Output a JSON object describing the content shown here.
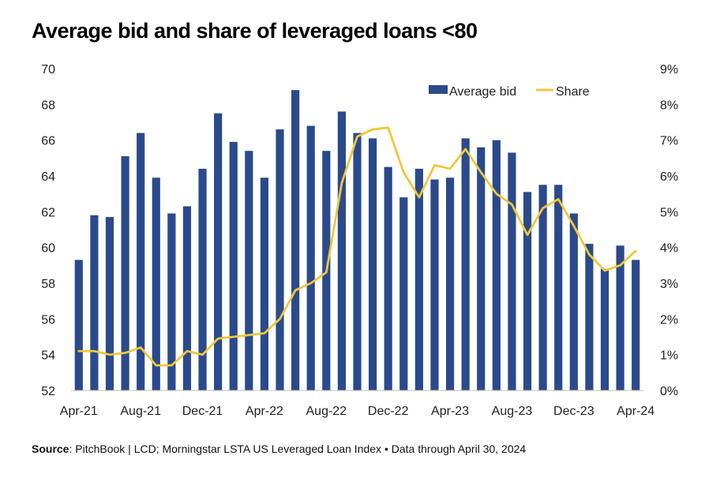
{
  "chart_data": {
    "type": "bar",
    "title": "Average bid and share of leveraged loans <80",
    "categories": [
      "Apr-21",
      "May-21",
      "Jun-21",
      "Jul-21",
      "Aug-21",
      "Sep-21",
      "Oct-21",
      "Nov-21",
      "Dec-21",
      "Jan-22",
      "Feb-22",
      "Mar-22",
      "Apr-22",
      "May-22",
      "Jun-22",
      "Jul-22",
      "Aug-22",
      "Sep-22",
      "Oct-22",
      "Nov-22",
      "Dec-22",
      "Jan-23",
      "Feb-23",
      "Mar-23",
      "Apr-23",
      "May-23",
      "Jun-23",
      "Jul-23",
      "Aug-23",
      "Sep-23",
      "Oct-23",
      "Nov-23",
      "Dec-23",
      "Jan-24",
      "Feb-24",
      "Mar-24",
      "Apr-24"
    ],
    "x_tick_labels": [
      "Apr-21",
      "Aug-21",
      "Dec-21",
      "Apr-22",
      "Aug-22",
      "Dec-22",
      "Apr-23",
      "Aug-23",
      "Dec-23",
      "Apr-24"
    ],
    "series": [
      {
        "name": "Average bid",
        "type": "bar",
        "axis": "left",
        "color": "#2b4a8b",
        "values": [
          59.3,
          61.8,
          61.7,
          65.1,
          66.4,
          63.9,
          61.9,
          62.3,
          64.4,
          67.5,
          65.9,
          65.4,
          63.9,
          66.6,
          68.8,
          66.8,
          65.4,
          67.6,
          66.4,
          66.1,
          64.5,
          62.8,
          64.4,
          63.8,
          63.9,
          66.1,
          65.6,
          66.0,
          65.3,
          63.1,
          63.5,
          63.5,
          61.9,
          60.2,
          58.8,
          60.1,
          59.3
        ]
      },
      {
        "name": "Share",
        "type": "line",
        "axis": "right",
        "color": "#f0c83a",
        "values": [
          1.1,
          1.1,
          1.0,
          1.05,
          1.2,
          0.7,
          0.7,
          1.1,
          1.0,
          1.45,
          1.5,
          1.55,
          1.6,
          2.0,
          2.8,
          3.0,
          3.3,
          5.8,
          7.1,
          7.3,
          7.35,
          6.1,
          5.4,
          6.3,
          6.2,
          6.75,
          6.1,
          5.5,
          5.2,
          4.35,
          5.1,
          5.35,
          4.6,
          3.8,
          3.35,
          3.5,
          3.9
        ]
      }
    ],
    "y_left": {
      "min": 52,
      "max": 70,
      "step": 2,
      "tick_labels": [
        "52",
        "54",
        "56",
        "58",
        "60",
        "62",
        "64",
        "66",
        "68",
        "70"
      ]
    },
    "y_right": {
      "min": 0,
      "max": 9,
      "step": 1,
      "tick_labels": [
        "0%",
        "1%",
        "2%",
        "3%",
        "4%",
        "5%",
        "6%",
        "7%",
        "8%",
        "9%"
      ]
    },
    "legend": {
      "position": "top-right",
      "bar_label": "Average bid",
      "line_label": "Share"
    },
    "grid": false,
    "source_label": "Source",
    "source_text": ": PitchBook | LCD;  Morningstar LSTA US Leveraged Loan Index • Data through April 30, 2024"
  }
}
